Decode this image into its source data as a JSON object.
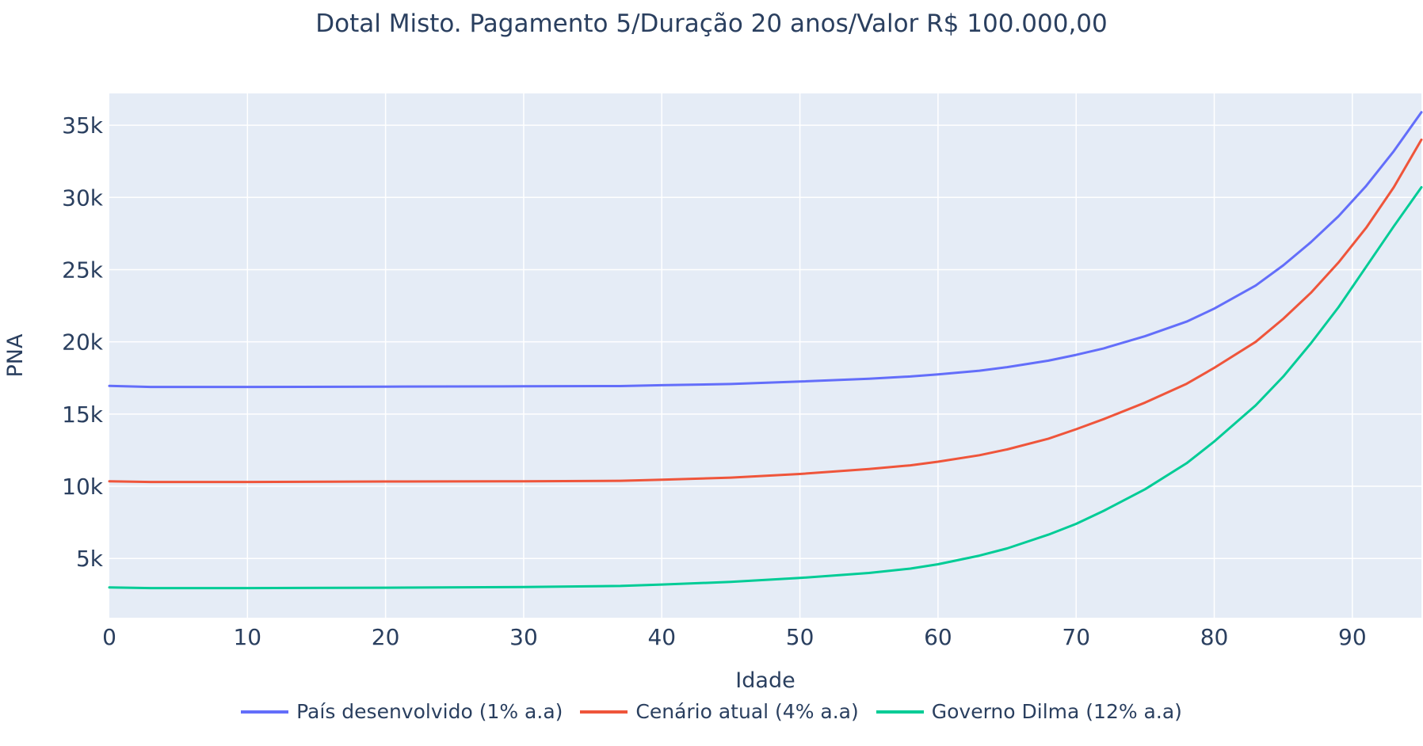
{
  "chart_data": {
    "type": "line",
    "title": "Dotal Misto. Pagamento 5/Duração 20 anos/Valor R$ 100.000,00",
    "xlabel": "Idade",
    "ylabel": "PNA",
    "xlim": [
      0,
      95
    ],
    "ylim": [
      900,
      37200
    ],
    "xticks": [
      0,
      10,
      20,
      30,
      40,
      50,
      60,
      70,
      80,
      90
    ],
    "yticks": [
      5000,
      10000,
      15000,
      20000,
      25000,
      30000,
      35000
    ],
    "ytick_labels": [
      "5k",
      "10k",
      "15k",
      "20k",
      "25k",
      "30k",
      "35k"
    ],
    "grid": true,
    "legend_position": "bottom",
    "x": [
      0,
      3,
      10,
      20,
      30,
      37,
      40,
      45,
      50,
      55,
      58,
      60,
      63,
      65,
      68,
      70,
      72,
      75,
      78,
      80,
      83,
      85,
      87,
      89,
      91,
      93,
      95
    ],
    "series": [
      {
        "name": "País desenvolvido (1% a.a)",
        "color": "#636efa",
        "values": [
          16950,
          16880,
          16880,
          16900,
          16920,
          16940,
          17000,
          17080,
          17250,
          17450,
          17600,
          17750,
          18000,
          18250,
          18700,
          19100,
          19550,
          20400,
          21400,
          22300,
          23900,
          25300,
          26900,
          28700,
          30800,
          33200,
          35900
        ]
      },
      {
        "name": "Cenário atual (4% a.a)",
        "color": "#ef553b",
        "values": [
          10350,
          10300,
          10300,
          10330,
          10350,
          10380,
          10450,
          10600,
          10850,
          11200,
          11450,
          11700,
          12150,
          12550,
          13300,
          13950,
          14650,
          15800,
          17100,
          18200,
          20000,
          21600,
          23400,
          25500,
          27900,
          30700,
          34000
        ]
      },
      {
        "name": "Governo Dilma (12% a.a)",
        "color": "#00cc96",
        "values": [
          3000,
          2950,
          2950,
          2980,
          3020,
          3100,
          3200,
          3380,
          3650,
          4000,
          4300,
          4600,
          5200,
          5700,
          6650,
          7400,
          8300,
          9800,
          11600,
          13100,
          15600,
          17600,
          19900,
          22400,
          25200,
          28000,
          30700
        ]
      }
    ]
  }
}
